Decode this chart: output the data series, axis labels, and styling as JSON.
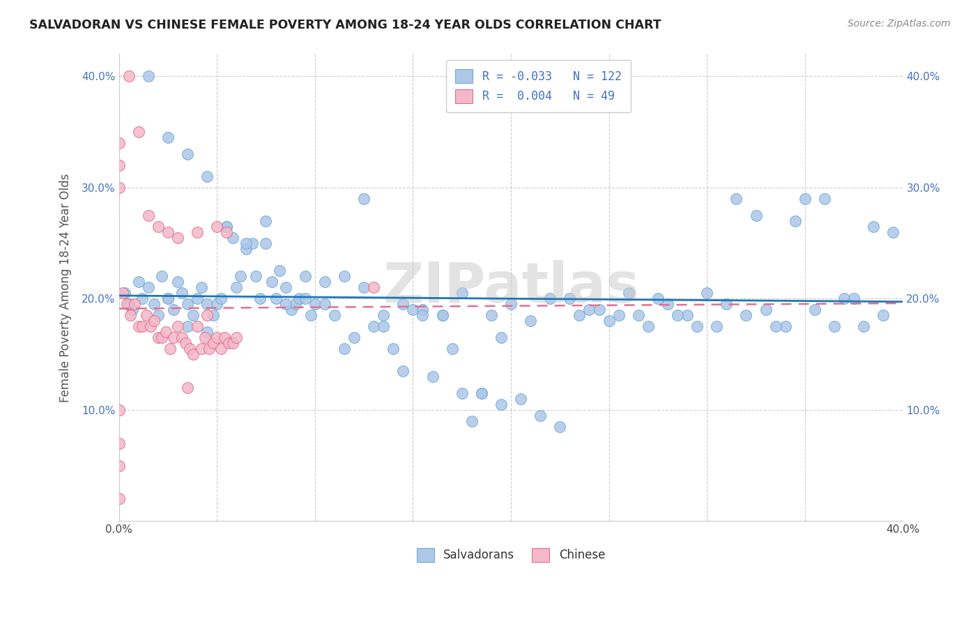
{
  "title": "SALVADORAN VS CHINESE FEMALE POVERTY AMONG 18-24 YEAR OLDS CORRELATION CHART",
  "source": "Source: ZipAtlas.com",
  "ylabel": "Female Poverty Among 18-24 Year Olds",
  "xlim": [
    0.0,
    0.4
  ],
  "ylim": [
    0.0,
    0.42
  ],
  "salvadoran_color": "#aec6e8",
  "chinese_color": "#f4b8c8",
  "salvadoran_edge": "#6baed6",
  "chinese_edge": "#e07090",
  "regression_blue": "#1f77b4",
  "regression_pink": "#e07090",
  "R_salv": -0.033,
  "N_salv": 122,
  "R_chin": 0.004,
  "N_chin": 49,
  "watermark": "ZIPatlas",
  "salvadoran_x": [
    0.003,
    0.005,
    0.007,
    0.01,
    0.012,
    0.015,
    0.018,
    0.02,
    0.022,
    0.025,
    0.028,
    0.03,
    0.032,
    0.035,
    0.038,
    0.04,
    0.042,
    0.045,
    0.048,
    0.05,
    0.052,
    0.055,
    0.058,
    0.06,
    0.062,
    0.065,
    0.068,
    0.07,
    0.072,
    0.075,
    0.078,
    0.08,
    0.082,
    0.085,
    0.088,
    0.09,
    0.092,
    0.095,
    0.098,
    0.1,
    0.105,
    0.11,
    0.115,
    0.12,
    0.125,
    0.13,
    0.135,
    0.14,
    0.145,
    0.15,
    0.155,
    0.16,
    0.165,
    0.17,
    0.175,
    0.18,
    0.185,
    0.19,
    0.195,
    0.2,
    0.21,
    0.22,
    0.23,
    0.24,
    0.25,
    0.26,
    0.27,
    0.28,
    0.29,
    0.3,
    0.31,
    0.32,
    0.33,
    0.34,
    0.35,
    0.36,
    0.37,
    0.38,
    0.39,
    0.025,
    0.035,
    0.045,
    0.055,
    0.065,
    0.075,
    0.085,
    0.095,
    0.105,
    0.115,
    0.125,
    0.135,
    0.145,
    0.155,
    0.165,
    0.175,
    0.185,
    0.195,
    0.205,
    0.215,
    0.225,
    0.235,
    0.245,
    0.255,
    0.265,
    0.275,
    0.285,
    0.295,
    0.305,
    0.315,
    0.325,
    0.335,
    0.345,
    0.355,
    0.365,
    0.375,
    0.385,
    0.395,
    0.005,
    0.015,
    0.025,
    0.035,
    0.045
  ],
  "salvadoran_y": [
    0.205,
    0.195,
    0.19,
    0.215,
    0.2,
    0.21,
    0.195,
    0.185,
    0.22,
    0.2,
    0.19,
    0.215,
    0.205,
    0.195,
    0.185,
    0.2,
    0.21,
    0.195,
    0.185,
    0.195,
    0.2,
    0.265,
    0.255,
    0.21,
    0.22,
    0.245,
    0.25,
    0.22,
    0.2,
    0.25,
    0.215,
    0.2,
    0.225,
    0.21,
    0.19,
    0.195,
    0.2,
    0.22,
    0.185,
    0.195,
    0.195,
    0.185,
    0.155,
    0.165,
    0.29,
    0.175,
    0.175,
    0.155,
    0.135,
    0.19,
    0.19,
    0.13,
    0.185,
    0.155,
    0.115,
    0.09,
    0.115,
    0.185,
    0.165,
    0.195,
    0.18,
    0.2,
    0.2,
    0.19,
    0.18,
    0.205,
    0.175,
    0.195,
    0.185,
    0.205,
    0.195,
    0.185,
    0.19,
    0.175,
    0.29,
    0.29,
    0.2,
    0.175,
    0.185,
    0.345,
    0.33,
    0.31,
    0.265,
    0.25,
    0.27,
    0.195,
    0.2,
    0.215,
    0.22,
    0.21,
    0.185,
    0.195,
    0.185,
    0.185,
    0.205,
    0.115,
    0.105,
    0.11,
    0.095,
    0.085,
    0.185,
    0.19,
    0.185,
    0.185,
    0.2,
    0.185,
    0.175,
    0.175,
    0.29,
    0.275,
    0.175,
    0.27,
    0.19,
    0.175,
    0.2,
    0.265,
    0.26,
    0.195,
    0.4,
    0.2,
    0.175,
    0.17
  ],
  "chinese_x": [
    0.002,
    0.004,
    0.006,
    0.008,
    0.01,
    0.012,
    0.014,
    0.016,
    0.018,
    0.02,
    0.022,
    0.024,
    0.026,
    0.028,
    0.03,
    0.032,
    0.034,
    0.036,
    0.038,
    0.04,
    0.042,
    0.044,
    0.046,
    0.048,
    0.05,
    0.052,
    0.054,
    0.056,
    0.058,
    0.06,
    0.005,
    0.01,
    0.015,
    0.02,
    0.025,
    0.03,
    0.035,
    0.04,
    0.045,
    0.05,
    0.055,
    0.13,
    0.0,
    0.0,
    0.0,
    0.0,
    0.0,
    0.0,
    0.0
  ],
  "chinese_y": [
    0.205,
    0.195,
    0.185,
    0.195,
    0.175,
    0.175,
    0.185,
    0.175,
    0.18,
    0.165,
    0.165,
    0.17,
    0.155,
    0.165,
    0.175,
    0.165,
    0.16,
    0.155,
    0.15,
    0.175,
    0.155,
    0.165,
    0.155,
    0.16,
    0.165,
    0.155,
    0.165,
    0.16,
    0.16,
    0.165,
    0.4,
    0.35,
    0.275,
    0.265,
    0.26,
    0.255,
    0.12,
    0.26,
    0.185,
    0.265,
    0.26,
    0.21,
    0.34,
    0.32,
    0.3,
    0.1,
    0.07,
    0.05,
    0.02
  ]
}
